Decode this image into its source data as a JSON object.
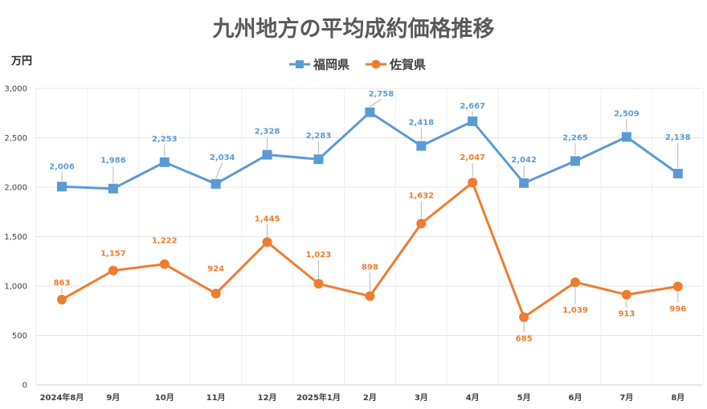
{
  "chart_data": {
    "type": "line",
    "title": "九州地方の平均成約価格推移",
    "ylabel": "万円",
    "categories": [
      "2024年8月",
      "9月",
      "10月",
      "11月",
      "12月",
      "2025年1月",
      "2月",
      "3月",
      "4月",
      "5月",
      "6月",
      "7月",
      "8月"
    ],
    "ylim": [
      0,
      3000
    ],
    "yticks": [
      0,
      500,
      1000,
      1500,
      2000,
      2500,
      3000
    ],
    "ytick_labels": [
      "0",
      "500",
      "1,000",
      "1,500",
      "2,000",
      "2,500",
      "3,000"
    ],
    "grid": true,
    "legend_position": "top-center",
    "series": [
      {
        "name": "福岡県",
        "color": "#5B9BD5",
        "marker": "square",
        "values": [
          2006,
          1986,
          2253,
          2034,
          2328,
          2283,
          2758,
          2418,
          2667,
          2042,
          2265,
          2509,
          2138
        ],
        "labels": [
          "2,006",
          "1,986",
          "2,253",
          "2,034",
          "2,328",
          "2,283",
          "2,758",
          "2,418",
          "2,667",
          "2,042",
          "2,265",
          "2,509",
          "2,138"
        ]
      },
      {
        "name": "佐賀県",
        "color": "#ED7D31",
        "marker": "circle",
        "values": [
          863,
          1157,
          1222,
          924,
          1445,
          1023,
          898,
          1632,
          2047,
          685,
          1039,
          913,
          996
        ],
        "labels": [
          "863",
          "1,157",
          "1,222",
          "924",
          "1,445",
          "1,023",
          "898",
          "1,632",
          "2,047",
          "685",
          "1,039",
          "913",
          "996"
        ]
      }
    ]
  }
}
